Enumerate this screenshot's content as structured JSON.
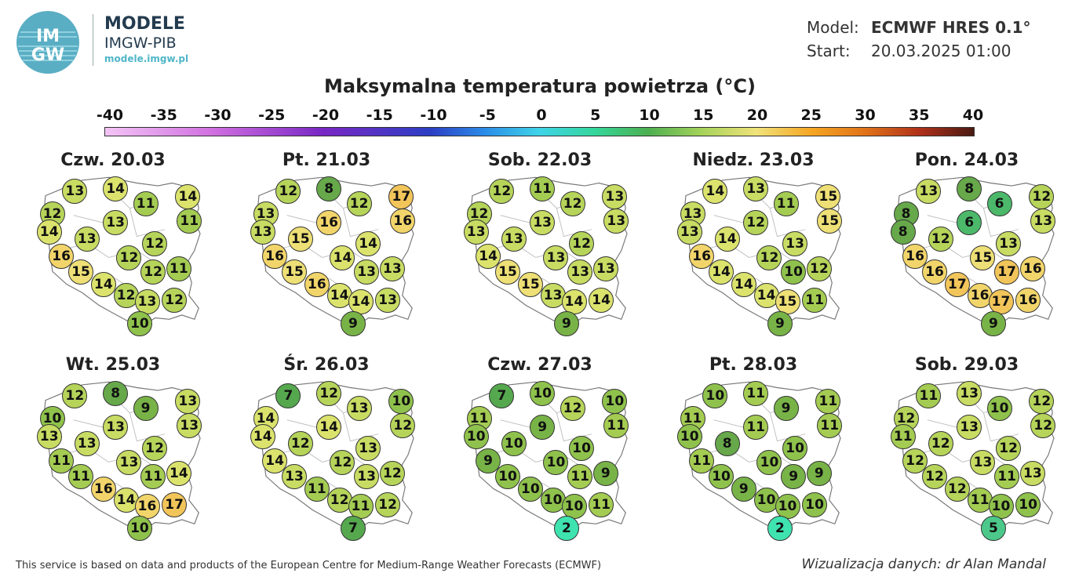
{
  "header": {
    "brand_title": "MODELE",
    "brand_sub": "IMGW-PIB",
    "brand_url": "modele.imgw.pl",
    "logo_text_top": "IM",
    "logo_text_bottom": "GW",
    "model_label": "Model:",
    "model_value": "ECMWF HRES 0.1°",
    "start_label": "Start:",
    "start_value": "20.03.2025 01:00"
  },
  "title": "Maksymalna temperatura powietrza (°C)",
  "scale": {
    "ticks": [
      "-40",
      "-35",
      "-30",
      "-25",
      "-20",
      "-15",
      "-10",
      "-5",
      "0",
      "5",
      "10",
      "15",
      "20",
      "25",
      "30",
      "35",
      "40"
    ]
  },
  "days": [
    {
      "title": "Czw. 20.03",
      "values": [
        13,
        14,
        14,
        12,
        11,
        11,
        14,
        13,
        13,
        12,
        16,
        12,
        15,
        12,
        11,
        14,
        12,
        13,
        12,
        10
      ]
    },
    {
      "title": "Pt. 21.03",
      "values": [
        12,
        8,
        17,
        13,
        12,
        16,
        13,
        16,
        15,
        14,
        16,
        14,
        15,
        13,
        13,
        16,
        14,
        14,
        13,
        9
      ]
    },
    {
      "title": "Sob. 22.03",
      "values": [
        12,
        11,
        13,
        12,
        12,
        13,
        13,
        13,
        13,
        12,
        14,
        13,
        15,
        13,
        13,
        15,
        13,
        14,
        14,
        9
      ]
    },
    {
      "title": "Niedz. 23.03",
      "values": [
        14,
        13,
        15,
        13,
        11,
        15,
        13,
        12,
        14,
        13,
        16,
        12,
        14,
        10,
        12,
        14,
        14,
        15,
        11,
        9
      ]
    },
    {
      "title": "Pon. 24.03",
      "values": [
        13,
        8,
        12,
        8,
        6,
        13,
        8,
        6,
        12,
        13,
        16,
        15,
        16,
        17,
        16,
        17,
        16,
        17,
        16,
        9
      ]
    },
    {
      "title": "Wt. 25.03",
      "values": [
        12,
        8,
        13,
        10,
        9,
        13,
        13,
        13,
        13,
        12,
        11,
        13,
        11,
        11,
        14,
        16,
        14,
        16,
        17,
        10
      ]
    },
    {
      "title": "Śr. 26.03",
      "values": [
        7,
        12,
        10,
        14,
        13,
        12,
        14,
        14,
        12,
        13,
        14,
        12,
        13,
        13,
        12,
        11,
        12,
        11,
        12,
        7
      ]
    },
    {
      "title": "Czw. 27.03",
      "values": [
        7,
        10,
        10,
        11,
        12,
        11,
        10,
        9,
        10,
        10,
        9,
        10,
        10,
        11,
        9,
        10,
        10,
        10,
        11,
        2
      ]
    },
    {
      "title": "Pt. 28.03",
      "values": [
        10,
        11,
        11,
        11,
        9,
        11,
        10,
        11,
        8,
        10,
        11,
        10,
        10,
        9,
        9,
        9,
        10,
        10,
        10,
        2
      ]
    },
    {
      "title": "Sob. 29.03",
      "values": [
        11,
        13,
        12,
        12,
        10,
        12,
        11,
        13,
        12,
        12,
        12,
        13,
        12,
        11,
        13,
        12,
        11,
        10,
        10,
        5
      ]
    }
  ],
  "footer": {
    "left": "This service is based on data and products of the European Centre for Medium-Range Weather Forecasts (ECMWF)",
    "right": "Wizualizacja danych: dr Alan Mandal"
  },
  "colors": {
    "c2": "#3fe3b0",
    "c5": "#4cc98a",
    "c6": "#4cb86a",
    "c7": "#55a84e",
    "c8": "#66a84a",
    "c9": "#78b347",
    "c10": "#8fc24c",
    "c11": "#a4cc52",
    "c12": "#b6d45a",
    "c13": "#c8dc63",
    "c14": "#dbe36d",
    "c15": "#eee076",
    "c16": "#f2d56a",
    "c17": "#f2c55a"
  }
}
